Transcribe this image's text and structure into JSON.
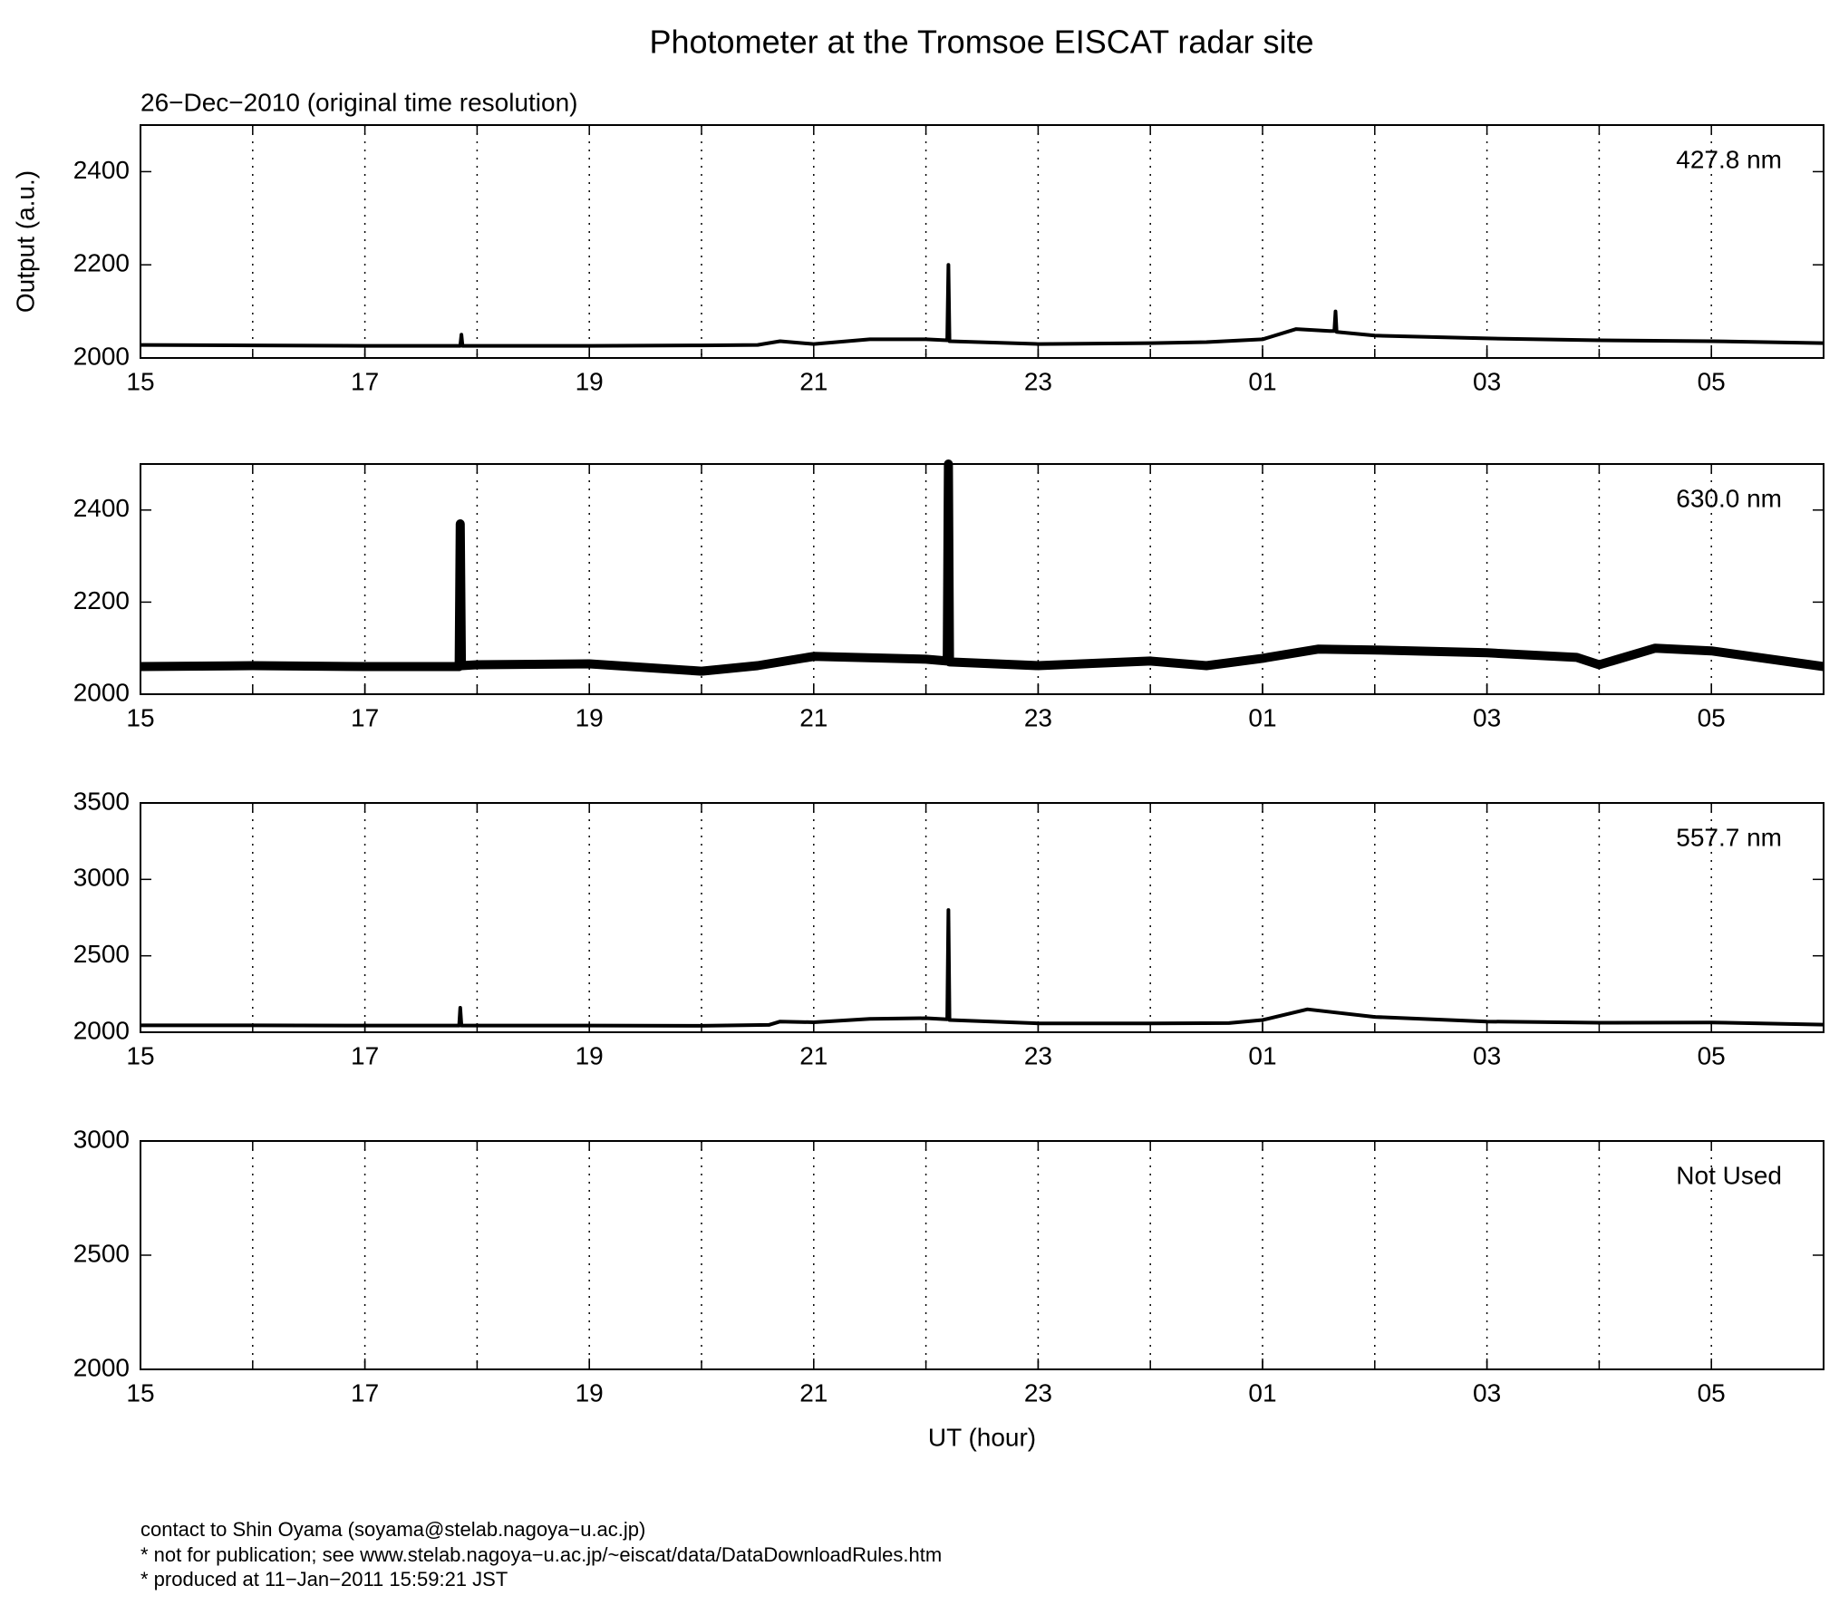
{
  "header": {
    "title": "Photometer at the Tromsoe EISCAT radar site",
    "subtitle": "26−Dec−2010 (original time resolution)"
  },
  "footer": [
    "contact to Shin Oyama (soyama@stelab.nagoya−u.ac.jp)",
    "* not for publication; see www.stelab.nagoya−u.ac.jp/~eiscat/data/DataDownloadRules.htm",
    "* produced at 11−Jan−2011 15:59:21 JST"
  ],
  "chart_data": [
    {
      "type": "line",
      "label": "427.8 nm",
      "ylabel": "Output (a.u.)",
      "xlim": [
        15,
        30
      ],
      "xticks": [
        15,
        {
          "value": 17,
          "label": "17"
        },
        19,
        21,
        23,
        {
          "value": 25,
          "label": "01"
        },
        {
          "value": 27,
          "label": "03"
        },
        {
          "value": 29,
          "label": "05"
        }
      ],
      "xgrid": [
        16,
        17,
        18,
        19,
        20,
        21,
        22,
        23,
        24,
        25,
        26,
        27,
        28,
        29
      ],
      "ylim": [
        2000,
        2500
      ],
      "yticks": [
        2000,
        2200,
        2400
      ],
      "grid": true,
      "series": [
        {
          "color": "#000000",
          "x": [
            15,
            16,
            17,
            17.85,
            17.86,
            17.87,
            18,
            19,
            20,
            20.5,
            20.7,
            21,
            21.5,
            22,
            22.19,
            22.2,
            22.21,
            23,
            24,
            24.5,
            25,
            25.3,
            25.6,
            25.64,
            25.65,
            25.66,
            26,
            27,
            28,
            29,
            30
          ],
          "values": [
            2028,
            2027,
            2026,
            2026,
            2050,
            2026,
            2026,
            2026,
            2027,
            2028,
            2036,
            2030,
            2040,
            2040,
            2038,
            2200,
            2036,
            2030,
            2032,
            2034,
            2040,
            2062,
            2058,
            2058,
            2100,
            2056,
            2048,
            2042,
            2038,
            2036,
            2032
          ]
        }
      ]
    },
    {
      "type": "line",
      "label": "630.0 nm",
      "xlim": [
        15,
        30
      ],
      "xticks": [
        15,
        17,
        19,
        21,
        23,
        {
          "value": 25,
          "label": "01"
        },
        {
          "value": 27,
          "label": "03"
        },
        {
          "value": 29,
          "label": "05"
        }
      ],
      "xgrid": [
        16,
        17,
        18,
        19,
        20,
        21,
        22,
        23,
        24,
        25,
        26,
        27,
        28,
        29
      ],
      "ylim": [
        2000,
        2500
      ],
      "yticks": [
        2000,
        2200,
        2400
      ],
      "grid": true,
      "series": [
        {
          "color": "#000000",
          "x": [
            15,
            16,
            17,
            17.84,
            17.85,
            17.86,
            18,
            19,
            20,
            20.5,
            21,
            22,
            22.19,
            22.2,
            22.21,
            23,
            24,
            24.5,
            25,
            25.5,
            26,
            27,
            27.8,
            28,
            28.5,
            29,
            30
          ],
          "values": [
            2060,
            2062,
            2060,
            2060,
            2370,
            2062,
            2064,
            2066,
            2050,
            2062,
            2082,
            2076,
            2072,
            2500,
            2070,
            2062,
            2072,
            2062,
            2078,
            2098,
            2096,
            2090,
            2080,
            2064,
            2100,
            2094,
            2060
          ]
        }
      ]
    },
    {
      "type": "line",
      "label": "557.7 nm",
      "xlim": [
        15,
        30
      ],
      "xticks": [
        15,
        17,
        19,
        21,
        23,
        {
          "value": 25,
          "label": "01"
        },
        {
          "value": 27,
          "label": "03"
        },
        {
          "value": 29,
          "label": "05"
        }
      ],
      "xgrid": [
        16,
        17,
        18,
        19,
        20,
        21,
        22,
        23,
        24,
        25,
        26,
        27,
        28,
        29
      ],
      "ylim": [
        2000,
        3500
      ],
      "yticks": [
        2000,
        2500,
        3000,
        3500
      ],
      "grid": true,
      "series": [
        {
          "color": "#000000",
          "x": [
            15,
            16,
            17,
            17.84,
            17.85,
            17.86,
            18,
            19,
            20,
            20.6,
            20.7,
            21,
            21.5,
            22,
            22.19,
            22.2,
            22.21,
            23,
            24,
            24.7,
            25,
            25.4,
            26,
            27,
            28,
            29,
            30
          ],
          "values": [
            2045,
            2045,
            2044,
            2044,
            2160,
            2044,
            2044,
            2044,
            2042,
            2048,
            2070,
            2065,
            2088,
            2092,
            2085,
            2800,
            2080,
            2058,
            2058,
            2060,
            2080,
            2150,
            2100,
            2070,
            2062,
            2064,
            2050
          ]
        }
      ]
    },
    {
      "type": "line",
      "label": "Not Used",
      "xlabel": "UT (hour)",
      "xlim": [
        15,
        30
      ],
      "xticks": [
        15,
        17,
        19,
        21,
        23,
        {
          "value": 25,
          "label": "01"
        },
        {
          "value": 27,
          "label": "03"
        },
        {
          "value": 29,
          "label": "05"
        }
      ],
      "xgrid": [
        16,
        17,
        18,
        19,
        20,
        21,
        22,
        23,
        24,
        25,
        26,
        27,
        28,
        29
      ],
      "ylim": [
        2000,
        3000
      ],
      "yticks": [
        2000,
        2500,
        3000
      ],
      "grid": true,
      "series": []
    }
  ]
}
